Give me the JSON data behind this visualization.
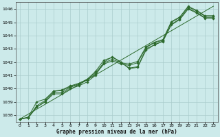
{
  "title": "Graphe pression niveau de la mer (hPa)",
  "bg_color": "#cceaea",
  "grid_color": "#aacccc",
  "line_color": "#2d6a2d",
  "xlim": [
    -0.5,
    23.5
  ],
  "ylim": [
    1037.5,
    1046.5
  ],
  "yticks": [
    1038,
    1039,
    1040,
    1041,
    1042,
    1043,
    1044,
    1045,
    1046
  ],
  "xticks": [
    0,
    1,
    2,
    3,
    4,
    5,
    6,
    7,
    8,
    9,
    10,
    11,
    12,
    13,
    14,
    15,
    16,
    17,
    18,
    19,
    20,
    21,
    22,
    23
  ],
  "series": [
    [
      1037.7,
      1037.8,
      1038.6,
      1039.0,
      1039.6,
      1039.6,
      1040.0,
      1040.2,
      1040.5,
      1041.0,
      1042.0,
      1042.4,
      1042.0,
      1041.5,
      1041.6,
      1042.9,
      1043.3,
      1043.6,
      1044.8,
      1045.2,
      1046.0,
      1045.7,
      1045.3,
      1045.3
    ],
    [
      1037.7,
      1037.8,
      1038.6,
      1039.0,
      1039.7,
      1039.7,
      1040.1,
      1040.3,
      1040.65,
      1041.1,
      1041.85,
      1042.1,
      1041.85,
      1041.75,
      1041.95,
      1043.1,
      1043.45,
      1043.65,
      1045.0,
      1045.35,
      1046.15,
      1045.85,
      1045.45,
      1045.45
    ],
    [
      1037.7,
      1037.8,
      1038.7,
      1039.1,
      1039.8,
      1039.85,
      1040.15,
      1040.35,
      1040.7,
      1041.2,
      1041.95,
      1042.2,
      1041.95,
      1041.85,
      1042.05,
      1043.15,
      1043.5,
      1043.7,
      1045.05,
      1045.4,
      1046.2,
      1045.9,
      1045.5,
      1045.5
    ],
    [
      1037.7,
      1037.85,
      1039.0,
      1039.2,
      1039.8,
      1039.9,
      1040.2,
      1040.4,
      1040.7,
      1041.3,
      1042.15,
      1042.35,
      1042.0,
      1041.55,
      1041.65,
      1043.0,
      1043.3,
      1043.55,
      1044.85,
      1045.25,
      1046.05,
      1045.75,
      1045.35,
      1045.35
    ]
  ],
  "trend": [
    1037.7,
    1038.07,
    1038.44,
    1038.81,
    1039.18,
    1039.55,
    1039.92,
    1040.29,
    1040.66,
    1041.03,
    1041.4,
    1041.77,
    1042.14,
    1042.51,
    1042.88,
    1043.25,
    1043.62,
    1043.99,
    1044.36,
    1044.73,
    1045.1,
    1045.47,
    1045.84,
    1046.21
  ]
}
